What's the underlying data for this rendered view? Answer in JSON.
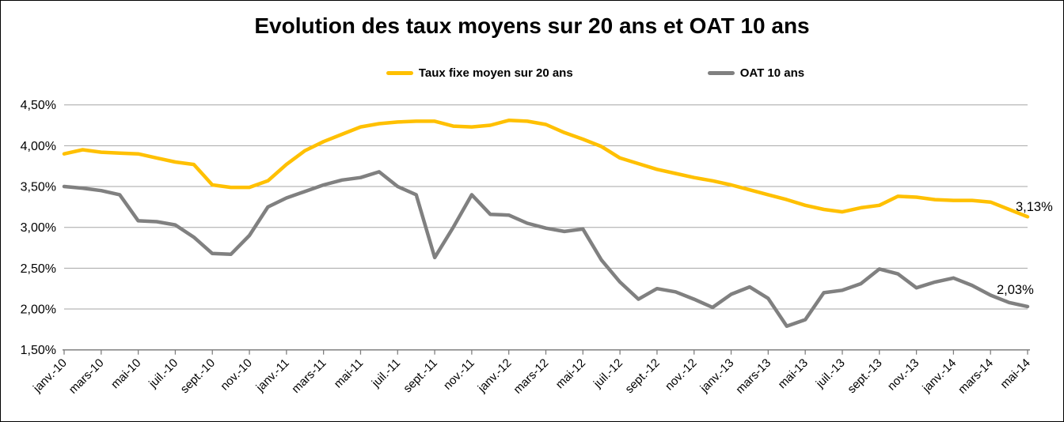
{
  "title": "Evolution des taux moyens sur 20 ans et OAT 10 ans",
  "legend": [
    {
      "label": "Taux fixe moyen sur 20 ans",
      "color": "#FFC000"
    },
    {
      "label": "OAT 10 ans",
      "color": "#808080"
    }
  ],
  "colors": {
    "taux_fixe": "#FFC000",
    "oat": "#808080",
    "gridline": "#A6A6A6",
    "axis": "#808080",
    "text": "#000000"
  },
  "chart_data": {
    "type": "line",
    "title": "Evolution des taux moyens sur 20 ans et OAT 10 ans",
    "xlabel": "",
    "ylabel": "",
    "ylim": [
      1.5,
      4.5
    ],
    "grid": true,
    "legend_position": "top",
    "y_tick_labels": [
      "4,50%",
      "4,00%",
      "3,50%",
      "3,00%",
      "2,50%",
      "2,00%",
      "1,50%"
    ],
    "x_tick_labels": [
      "janv.-10",
      "mars-10",
      "mai-10",
      "juil.-10",
      "sept.-10",
      "nov.-10",
      "janv.-11",
      "mars-11",
      "mai-11",
      "juil.-11",
      "sept.-11",
      "nov.-11",
      "janv.-12",
      "mars-12",
      "mai-12",
      "juil.-12",
      "sept.-12",
      "nov.-12",
      "janv.-13",
      "mars-13",
      "mai-13",
      "juil.-13",
      "sept.-13",
      "nov.-13",
      "janv.-14",
      "mars-14",
      "mai-14"
    ],
    "x": [
      "janv.-10",
      "févr.-10",
      "mars-10",
      "avr.-10",
      "mai-10",
      "juin-10",
      "juil.-10",
      "août-10",
      "sept.-10",
      "oct.-10",
      "nov.-10",
      "déc.-10",
      "janv.-11",
      "févr.-11",
      "mars-11",
      "avr.-11",
      "mai-11",
      "juin-11",
      "juil.-11",
      "août-11",
      "sept.-11",
      "oct.-11",
      "nov.-11",
      "déc.-11",
      "janv.-12",
      "févr.-12",
      "mars-12",
      "avr.-12",
      "mai-12",
      "juin-12",
      "juil.-12",
      "août-12",
      "sept.-12",
      "oct.-12",
      "nov.-12",
      "déc.-12",
      "janv.-13",
      "févr.-13",
      "mars-13",
      "avr.-13",
      "mai-13",
      "juin-13",
      "juil.-13",
      "août-13",
      "sept.-13",
      "oct.-13",
      "nov.-13",
      "déc.-13",
      "janv.-14",
      "févr.-14",
      "mars-14",
      "avr.-14",
      "mai-14"
    ],
    "series": [
      {
        "name": "Taux fixe moyen sur 20 ans",
        "color": "#FFC000",
        "end_label": "3,13%",
        "values": [
          3.9,
          3.95,
          3.92,
          3.91,
          3.9,
          3.85,
          3.8,
          3.77,
          3.52,
          3.49,
          3.49,
          3.57,
          3.77,
          3.94,
          4.05,
          4.14,
          4.23,
          4.27,
          4.29,
          4.3,
          4.3,
          4.24,
          4.23,
          4.25,
          4.31,
          4.3,
          4.26,
          4.16,
          4.08,
          3.99,
          3.85,
          3.78,
          3.71,
          3.66,
          3.61,
          3.57,
          3.52,
          3.46,
          3.4,
          3.34,
          3.27,
          3.22,
          3.19,
          3.24,
          3.27,
          3.38,
          3.37,
          3.34,
          3.33,
          3.33,
          3.31,
          3.22,
          3.13
        ]
      },
      {
        "name": "OAT 10 ans",
        "color": "#808080",
        "end_label": "2,03%",
        "values": [
          3.5,
          3.48,
          3.45,
          3.4,
          3.08,
          3.07,
          3.03,
          2.88,
          2.68,
          2.67,
          2.9,
          3.25,
          3.36,
          3.44,
          3.52,
          3.58,
          3.61,
          3.68,
          3.5,
          3.4,
          2.63,
          3.0,
          3.4,
          3.16,
          3.15,
          3.05,
          2.99,
          2.95,
          2.98,
          2.6,
          2.33,
          2.12,
          2.25,
          2.21,
          2.12,
          2.02,
          2.18,
          2.27,
          2.13,
          1.79,
          1.87,
          2.2,
          2.23,
          2.31,
          2.49,
          2.43,
          2.26,
          2.33,
          2.38,
          2.29,
          2.17,
          2.08,
          2.03
        ]
      }
    ]
  }
}
